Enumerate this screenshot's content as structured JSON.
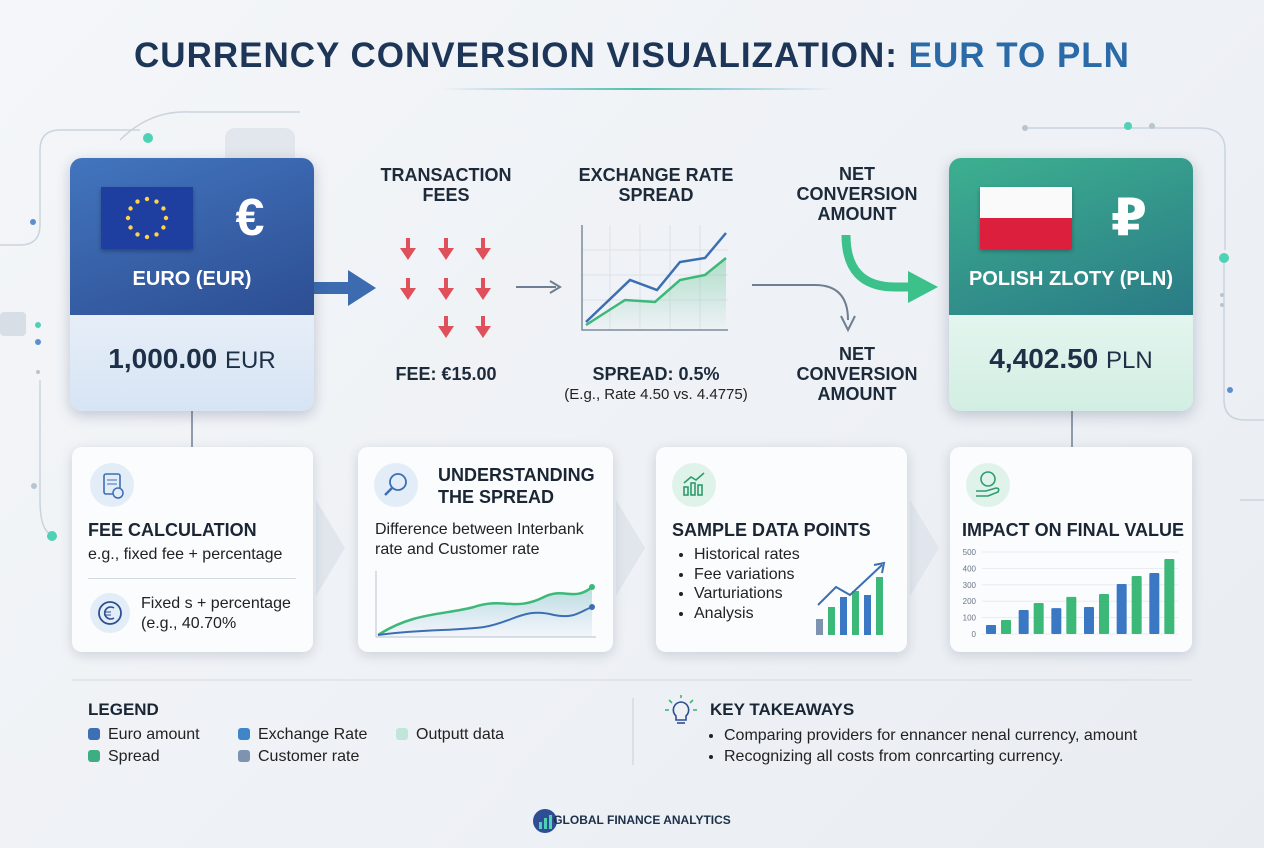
{
  "header": {
    "title": "CURRENCY CONVERSION VISUALIZATION:",
    "title_highlight": "EUR TO PLN"
  },
  "source": {
    "symbol": "€",
    "label": "EURO (EUR)",
    "amount": "1,000.00",
    "unit": "EUR"
  },
  "target": {
    "symbol": "₽",
    "label": "POLISH ZLOTY (PLN)",
    "amount": "4,402.50",
    "unit": "PLN"
  },
  "flow": {
    "fees": {
      "title": "TRANSACTION FEES",
      "value": "FEE: €15.00"
    },
    "spread": {
      "title": "EXCHANGE RATE SPREAD",
      "value": "SPREAD: 0.5%",
      "note": "(E.g., Rate 4.50 vs. 4.4775)"
    },
    "net_top": "NET CONVERSION AMOUNT",
    "net_bottom": "NET CONVERSION AMOUNT"
  },
  "cards": [
    {
      "title": "FEE CALCULATION",
      "text": "e.g., fixed fee + percentage",
      "detail": "Fixed s + percentage",
      "detail_note": "(e.g., 40.70%"
    },
    {
      "title": "UNDERSTANDING THE SPREAD",
      "text": "Difference between Interbank rate and Customer rate"
    },
    {
      "title": "SAMPLE DATA POINTS",
      "items": [
        "Historical rates",
        "Fee variations",
        "Varturiations",
        "Analysis"
      ]
    },
    {
      "title": "IMPACT ON FINAL VALUE",
      "chart": {
        "type": "bar",
        "ylim": [
          0,
          500
        ],
        "yticks": [
          0,
          100,
          200,
          300,
          400,
          500
        ],
        "series": [
          {
            "color": "#3b78c4",
            "values": [
              55,
              146,
              158,
              165,
              305,
              372
            ]
          },
          {
            "color": "#3cb878",
            "values": [
              85,
              189,
              226,
              244,
              354,
              457
            ]
          }
        ]
      }
    }
  ],
  "legend": {
    "title": "LEGEND",
    "items": [
      {
        "label": "Euro amount",
        "color": "#3d6fb5"
      },
      {
        "label": "Exchange Rate",
        "color": "#3f86c9"
      },
      {
        "label": "Outputt data",
        "color": "#bfe6d8"
      },
      {
        "label": "Spread",
        "color": "#3cae82"
      },
      {
        "label": "Customer rate",
        "color": "#7d93b0"
      }
    ]
  },
  "takeaways": {
    "title": "KEY TAKEAWAYS",
    "items": [
      "Comparing providers for ennancer nenal currency, amount",
      "Recognizing all costs from conrcarting currency."
    ]
  },
  "footer": "GLOBAL FINANCE ANALYTICS"
}
